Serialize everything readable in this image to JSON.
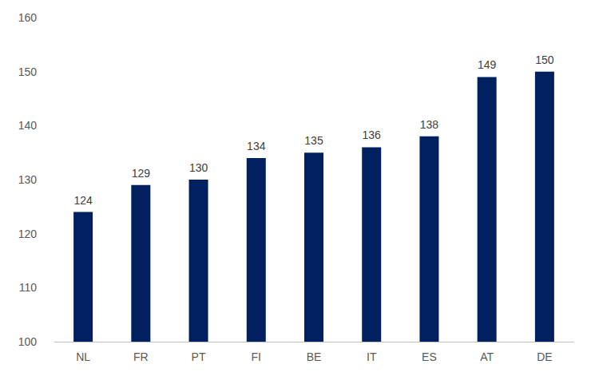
{
  "chart_data": {
    "type": "bar",
    "categories": [
      "NL",
      "FR",
      "PT",
      "FI",
      "BE",
      "IT",
      "ES",
      "AT",
      "DE"
    ],
    "values": [
      124,
      129,
      130,
      134,
      135,
      136,
      138,
      149,
      150
    ],
    "color": "#002060",
    "ylim": [
      100,
      160
    ],
    "yticks": [
      100,
      110,
      120,
      130,
      140,
      150,
      160
    ],
    "grid": false,
    "data_labels": true
  }
}
